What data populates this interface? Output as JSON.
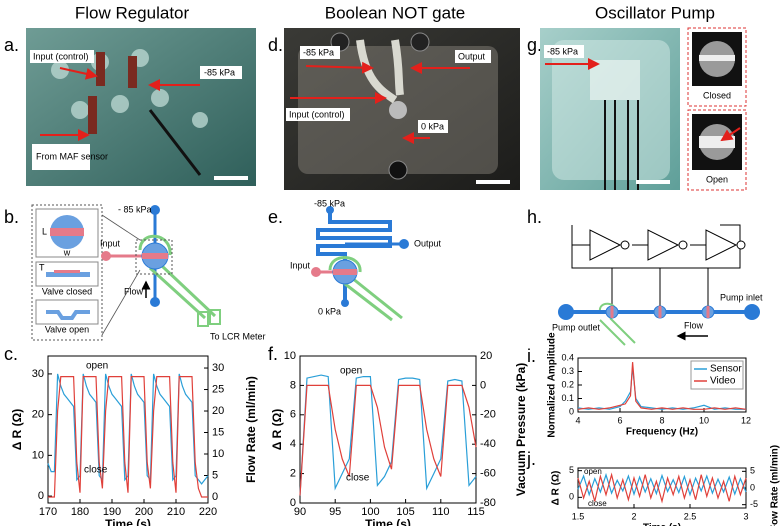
{
  "columns": [
    "Flow Regulator",
    "Boolean NOT gate",
    "Oscillator Pump"
  ],
  "panel_letters": [
    "a.",
    "b.",
    "c.",
    "d.",
    "e.",
    "f.",
    "g.",
    "h.",
    "i.",
    "j."
  ],
  "photo_a": {
    "labels": [
      "Input (control)",
      "-85 kPa",
      "From MAF sensor"
    ]
  },
  "photo_d": {
    "labels": [
      "-85 kPa",
      "Output",
      "Input (control)",
      "0 kPa"
    ]
  },
  "photo_g": {
    "labels": [
      "-85 kPa"
    ],
    "insets": [
      "Closed",
      "Open"
    ]
  },
  "diagram_b": {
    "labels": [
      "- 85 kPa",
      "Input",
      "Flow",
      "To LCR Meter",
      "L",
      "w",
      "T",
      "Valve closed",
      "Valve open"
    ]
  },
  "diagram_e": {
    "labels": [
      "-85 kPa",
      "Output",
      "Input",
      "0 kPa"
    ]
  },
  "diagram_h": {
    "labels": [
      "Pump inlet",
      "Pump outlet",
      "Flow"
    ]
  },
  "chart_data": [
    {
      "type": "line",
      "xlabel": "Time (s)",
      "ylabel": "Δ R (Ω)",
      "y2label": "Flow Rate (ml/min)",
      "annotations": [
        "open",
        "close"
      ],
      "x": [
        170,
        171,
        172,
        173,
        174,
        175,
        176,
        177,
        178,
        179,
        180,
        181,
        182,
        183,
        184,
        185,
        186,
        187,
        188,
        189,
        190,
        191,
        192,
        193,
        194,
        195,
        196,
        197,
        198,
        199,
        200,
        201,
        202,
        203,
        204,
        205,
        206,
        207,
        208,
        209,
        210,
        211,
        212,
        213,
        214,
        215,
        216,
        217,
        218,
        219,
        220
      ],
      "xlim": [
        170,
        220
      ],
      "xticks": [
        170,
        180,
        190,
        200,
        210,
        220
      ],
      "ylim": [
        -1.7,
        34.4
      ],
      "yticks": [
        0,
        10,
        20,
        30
      ],
      "y2lim": [
        -1.4,
        32.8
      ],
      "y2ticks": [
        0,
        5,
        10,
        15,
        20,
        25,
        30
      ],
      "series": [
        {
          "name": "Sensor",
          "color": "#2a9fd8",
          "axis": "y",
          "values": [
            8,
            6,
            6,
            30,
            27,
            25,
            24,
            23,
            22,
            4,
            5,
            30,
            27,
            25,
            24,
            23,
            5,
            4,
            30,
            27,
            25,
            24,
            23,
            22,
            4,
            5,
            30,
            27,
            25,
            24,
            23,
            5,
            4,
            30,
            27,
            25,
            24,
            23,
            22,
            4,
            5,
            30,
            27,
            25,
            24,
            23,
            5,
            4,
            3,
            4,
            5
          ]
        },
        {
          "name": "Flow Rate",
          "color": "#e0403a",
          "axis": "y2",
          "values": [
            0,
            0,
            0,
            20,
            28,
            28,
            28,
            28,
            28,
            8,
            1,
            28,
            28,
            28,
            28,
            28,
            8,
            2,
            20,
            28,
            28,
            28,
            28,
            28,
            8,
            1,
            28,
            28,
            28,
            28,
            28,
            8,
            2,
            20,
            28,
            28,
            28,
            28,
            28,
            8,
            1,
            28,
            28,
            28,
            28,
            28,
            8,
            2,
            0,
            0,
            0
          ]
        }
      ]
    },
    {
      "type": "line",
      "xlabel": "Time (s)",
      "ylabel": "Δ R (Ω)",
      "y2label": "Vacuum Pressure (kPa)",
      "annotations": [
        "open",
        "close"
      ],
      "x": [
        90,
        91,
        92,
        93,
        94,
        95,
        96,
        97,
        98,
        99,
        100,
        101,
        102,
        103,
        104,
        105,
        106,
        107,
        108,
        109,
        110,
        111,
        112,
        113,
        114,
        115
      ],
      "xlim": [
        90,
        115
      ],
      "xticks": [
        90,
        95,
        100,
        105,
        110,
        115
      ],
      "ylim": [
        0,
        10
      ],
      "yticks": [
        0,
        2,
        4,
        6,
        8,
        10
      ],
      "y2lim": [
        -80,
        20
      ],
      "y2ticks": [
        -80,
        -60,
        -40,
        -20,
        0,
        20
      ],
      "series": [
        {
          "name": "Sensor",
          "color": "#2a9fd8",
          "axis": "y",
          "values": [
            0.5,
            8.5,
            8.6,
            8.7,
            8.6,
            1.0,
            2,
            3,
            8.5,
            8.6,
            8.6,
            1.2,
            1.8,
            2.8,
            8.4,
            8.5,
            8.5,
            8.4,
            1.0,
            2,
            3,
            8.3,
            8.4,
            8.3,
            1.2,
            1.8
          ]
        },
        {
          "name": "Vacuum Pressure",
          "color": "#e0403a",
          "axis": "y2",
          "values": [
            -75,
            0,
            0,
            0,
            0,
            -30,
            -50,
            -62,
            0,
            0,
            0,
            -15,
            -42,
            -57,
            0,
            0,
            0,
            0,
            -30,
            -50,
            -62,
            0,
            0,
            0,
            -15,
            -42
          ]
        }
      ]
    },
    {
      "type": "line",
      "xlabel": "Frequency (Hz)",
      "ylabel": "Normalized Amplitude",
      "legend": "upper right",
      "x": [
        4,
        4.5,
        5,
        5.5,
        6,
        6.25,
        6.5,
        6.6,
        6.75,
        7,
        7.5,
        8,
        8.5,
        9,
        9.5,
        10,
        10.5,
        11,
        11.5,
        12
      ],
      "xlim": [
        4,
        12
      ],
      "xticks": [
        4,
        6,
        8,
        10,
        12
      ],
      "ylim": [
        0,
        0.4
      ],
      "yticks": [
        0,
        0.1,
        0.2,
        0.3,
        0.4
      ],
      "series": [
        {
          "name": "Sensor",
          "color": "#2a9fd8",
          "axis": "y",
          "values": [
            0.03,
            0.02,
            0.03,
            0.02,
            0.04,
            0.08,
            0.15,
            0.33,
            0.1,
            0.04,
            0.03,
            0.02,
            0.03,
            0.02,
            0.03,
            0.05,
            0.02,
            0.03,
            0.02,
            0.02
          ]
        },
        {
          "name": "Video",
          "color": "#e0403a",
          "axis": "y",
          "values": [
            0.02,
            0.03,
            0.02,
            0.03,
            0.05,
            0.06,
            0.12,
            0.37,
            0.08,
            0.03,
            0.02,
            0.03,
            0.02,
            0.03,
            0.02,
            0.02,
            0.03,
            0.02,
            0.03,
            0.02
          ]
        }
      ]
    },
    {
      "type": "line",
      "xlabel": "Time (s)",
      "ylabel": "Δ R (Ω)",
      "y2label": "Fow Rate (ml/min)",
      "annotations": [
        "open",
        "close"
      ],
      "x": [
        1.5,
        1.55,
        1.6,
        1.65,
        1.7,
        1.75,
        1.8,
        1.85,
        1.9,
        1.95,
        2,
        2.05,
        2.1,
        2.15,
        2.2,
        2.25,
        2.3,
        2.35,
        2.4,
        2.45,
        2.5,
        2.55,
        2.6,
        2.65,
        2.7,
        2.75,
        2.8,
        2.85,
        2.9,
        2.95,
        3
      ],
      "xlim": [
        1.5,
        3
      ],
      "xticks": [
        1.5,
        2,
        2.5,
        3
      ],
      "ylim": [
        -2,
        5.5
      ],
      "yticks": [
        0,
        5
      ],
      "y2lim": [
        -6,
        6
      ],
      "y2ticks": [
        -5,
        0,
        5
      ],
      "series": [
        {
          "name": "Sensor",
          "color": "#2a9fd8",
          "axis": "y",
          "values": [
            1.5,
            4,
            0.5,
            3.5,
            1,
            4.2,
            0.8,
            3.2,
            1.2,
            4,
            0.6,
            3.8,
            1,
            3.5,
            0.7,
            4.1,
            1.1,
            3.3,
            0.9,
            3.9,
            0.5,
            3.6,
            1.2,
            4,
            0.8,
            3.4,
            1,
            3.8,
            0.6,
            3.5,
            1
          ]
        },
        {
          "name": "Flow Rate",
          "color": "#e0403a",
          "axis": "y2",
          "values": [
            3,
            -3,
            2,
            -4,
            3.5,
            -2,
            4,
            -3,
            2.5,
            -3.5,
            3,
            -2.5,
            4,
            -3,
            2,
            -4,
            3,
            -2,
            3.5,
            -3,
            2.5,
            -3.5,
            4,
            -2.5,
            3,
            -3,
            2,
            -4,
            3.5,
            -2,
            3
          ]
        }
      ]
    }
  ]
}
